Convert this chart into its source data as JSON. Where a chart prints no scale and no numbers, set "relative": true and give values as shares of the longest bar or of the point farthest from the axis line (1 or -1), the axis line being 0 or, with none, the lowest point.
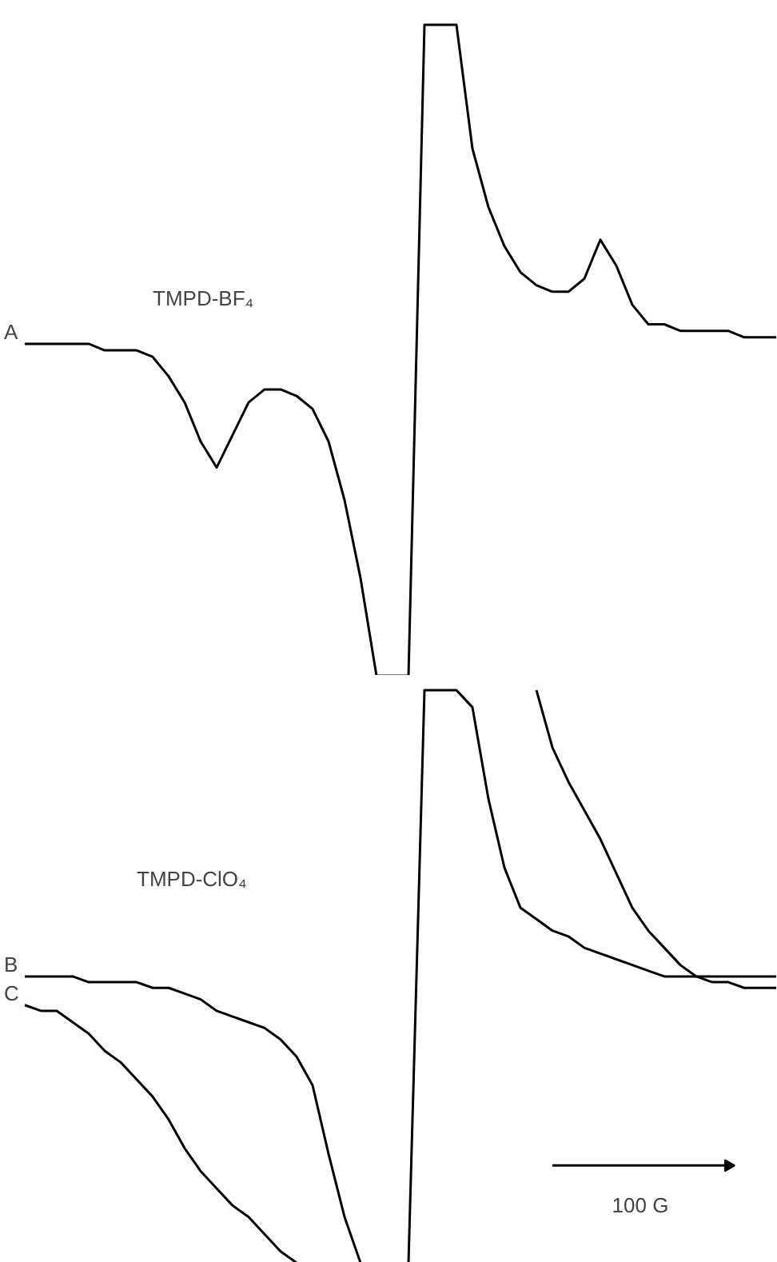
{
  "chart_data": [
    {
      "type": "line",
      "relative": true,
      "categories": [
        null,
        null,
        null,
        null,
        null,
        null,
        null,
        null,
        null,
        null,
        null,
        null,
        null,
        null,
        null,
        null,
        null,
        null,
        null,
        null,
        null,
        null,
        null,
        null,
        null,
        null,
        null,
        null,
        null,
        null,
        null,
        null,
        null,
        null,
        null,
        null,
        null,
        null,
        null,
        null,
        null,
        null,
        null,
        null,
        null,
        null,
        null,
        null
      ],
      "series": [
        {
          "name": "A",
          "color": "#000000",
          "values": [
            0.51,
            0.51,
            0.51,
            0.51,
            0.51,
            0.5,
            0.5,
            0.5,
            0.49,
            0.46,
            0.42,
            0.36,
            0.32,
            0.37,
            0.42,
            0.44,
            0.44,
            0.43,
            0.41,
            0.36,
            0.27,
            0.15,
            0,
            0,
            0,
            1,
            1,
            1,
            0.81,
            0.72,
            0.66,
            0.62,
            0.6,
            0.59,
            0.59,
            0.61,
            0.67,
            0.63,
            0.57,
            0.54,
            0.54,
            0.53,
            0.53,
            0.53,
            0.53,
            0.52,
            0.52,
            0.52
          ]
        }
      ],
      "annotations": [
        "TMPD-BF₄"
      ]
    },
    {
      "type": "line",
      "relative": true,
      "categories": [
        null,
        null,
        null,
        null,
        null,
        null,
        null,
        null,
        null,
        null,
        null,
        null,
        null,
        null,
        null,
        null,
        null,
        null,
        null,
        null,
        null,
        null,
        null,
        null,
        null,
        null,
        null,
        null,
        null,
        null,
        null,
        null,
        null,
        null,
        null,
        null,
        null,
        null,
        null,
        null,
        null,
        null,
        null,
        null,
        null,
        null,
        null,
        null
      ],
      "series": [
        {
          "name": "B",
          "color": "#000000",
          "values": [
            0.5,
            0.5,
            0.5,
            0.5,
            0.49,
            0.49,
            0.49,
            0.49,
            0.48,
            0.48,
            0.47,
            0.46,
            0.44,
            0.43,
            0.42,
            0.41,
            0.39,
            0.36,
            0.31,
            0.19,
            0.08,
            0,
            null,
            null,
            0,
            1,
            1,
            1,
            0.97,
            0.81,
            0.69,
            0.62,
            0.6,
            0.58,
            0.57,
            0.55,
            0.54,
            0.53,
            0.52,
            0.51,
            0.5,
            0.5,
            0.5,
            0.5,
            0.5,
            0.5,
            0.5,
            0.5
          ]
        },
        {
          "name": "C",
          "color": "#000000",
          "values": [
            0.45,
            0.44,
            0.44,
            0.42,
            0.4,
            0.37,
            0.35,
            0.32,
            0.29,
            0.25,
            0.2,
            0.16,
            0.13,
            0.1,
            0.08,
            0.05,
            0.02,
            0,
            null,
            null,
            null,
            null,
            null,
            null,
            null,
            null,
            null,
            null,
            null,
            null,
            null,
            null,
            1,
            0.9,
            0.84,
            0.79,
            0.74,
            0.68,
            0.62,
            0.58,
            0.55,
            0.52,
            0.5,
            0.49,
            0.49,
            0.48,
            0.48,
            0.48
          ]
        }
      ],
      "annotations": [
        "TMPD-ClO₄",
        "100 G"
      ]
    }
  ]
}
